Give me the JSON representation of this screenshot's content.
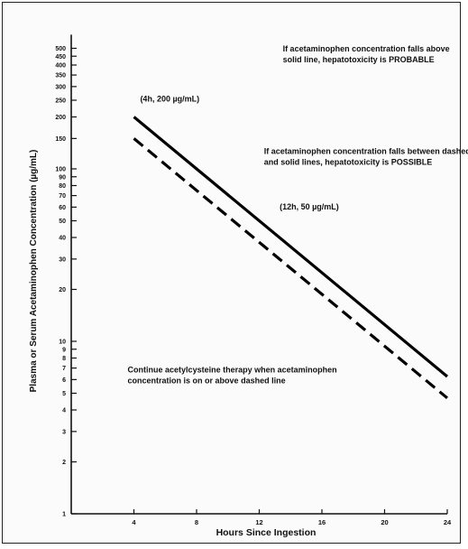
{
  "chart_data": {
    "type": "line",
    "xlabel": "Hours Since Ingestion",
    "ylabel": "Plasma or Serum Acetaminophen Concentration (µg/mL)",
    "x_scale": "linear",
    "y_scale": "log",
    "xlim": [
      0,
      24
    ],
    "ylim": [
      1,
      600
    ],
    "x_ticks": [
      4,
      8,
      12,
      16,
      20,
      24
    ],
    "y_ticks": [
      1,
      2,
      3,
      4,
      5,
      6,
      7,
      8,
      9,
      10,
      20,
      30,
      40,
      50,
      60,
      70,
      80,
      90,
      100,
      150,
      200,
      250,
      300,
      350,
      400,
      450,
      500
    ],
    "y_tick_labels": [
      "1",
      "2",
      "3",
      "4",
      "5",
      "6",
      "7",
      "8",
      "9",
      "10",
      "20",
      "30",
      "40",
      "50",
      "60",
      "70",
      "80",
      "90",
      "100",
      "150",
      "200",
      "250",
      "300",
      "350",
      "400",
      "450",
      "500"
    ],
    "grid": false,
    "series": [
      {
        "style": "solid",
        "x": [
          4,
          24
        ],
        "values": [
          200,
          6.25
        ]
      },
      {
        "style": "dashed",
        "x": [
          4,
          24
        ],
        "values": [
          150,
          4.69
        ]
      }
    ],
    "annotations": [
      {
        "id": "probable",
        "x": 13.5,
        "y": 480,
        "lines": [
          "If acetaminophen concentration falls above",
          "solid line, hepatotoxicity is PROBABLE"
        ]
      },
      {
        "id": "point-4h",
        "x": 4.4,
        "y": 245,
        "lines": [
          "(4h, 200 µg/mL)"
        ]
      },
      {
        "id": "possible",
        "x": 12.3,
        "y": 122,
        "lines": [
          "If acetaminophen concentration falls between dashed",
          "and solid lines, hepatotoxicity is POSSIBLE"
        ]
      },
      {
        "id": "point-12h",
        "x": 13.3,
        "y": 58,
        "lines": [
          "(12h, 50 µg/mL)"
        ]
      },
      {
        "id": "continue",
        "x": 3.6,
        "y": 6.6,
        "lines": [
          "Continue acetylcysteine therapy when acetaminophen",
          "concentration is on or above dashed line"
        ]
      }
    ]
  }
}
